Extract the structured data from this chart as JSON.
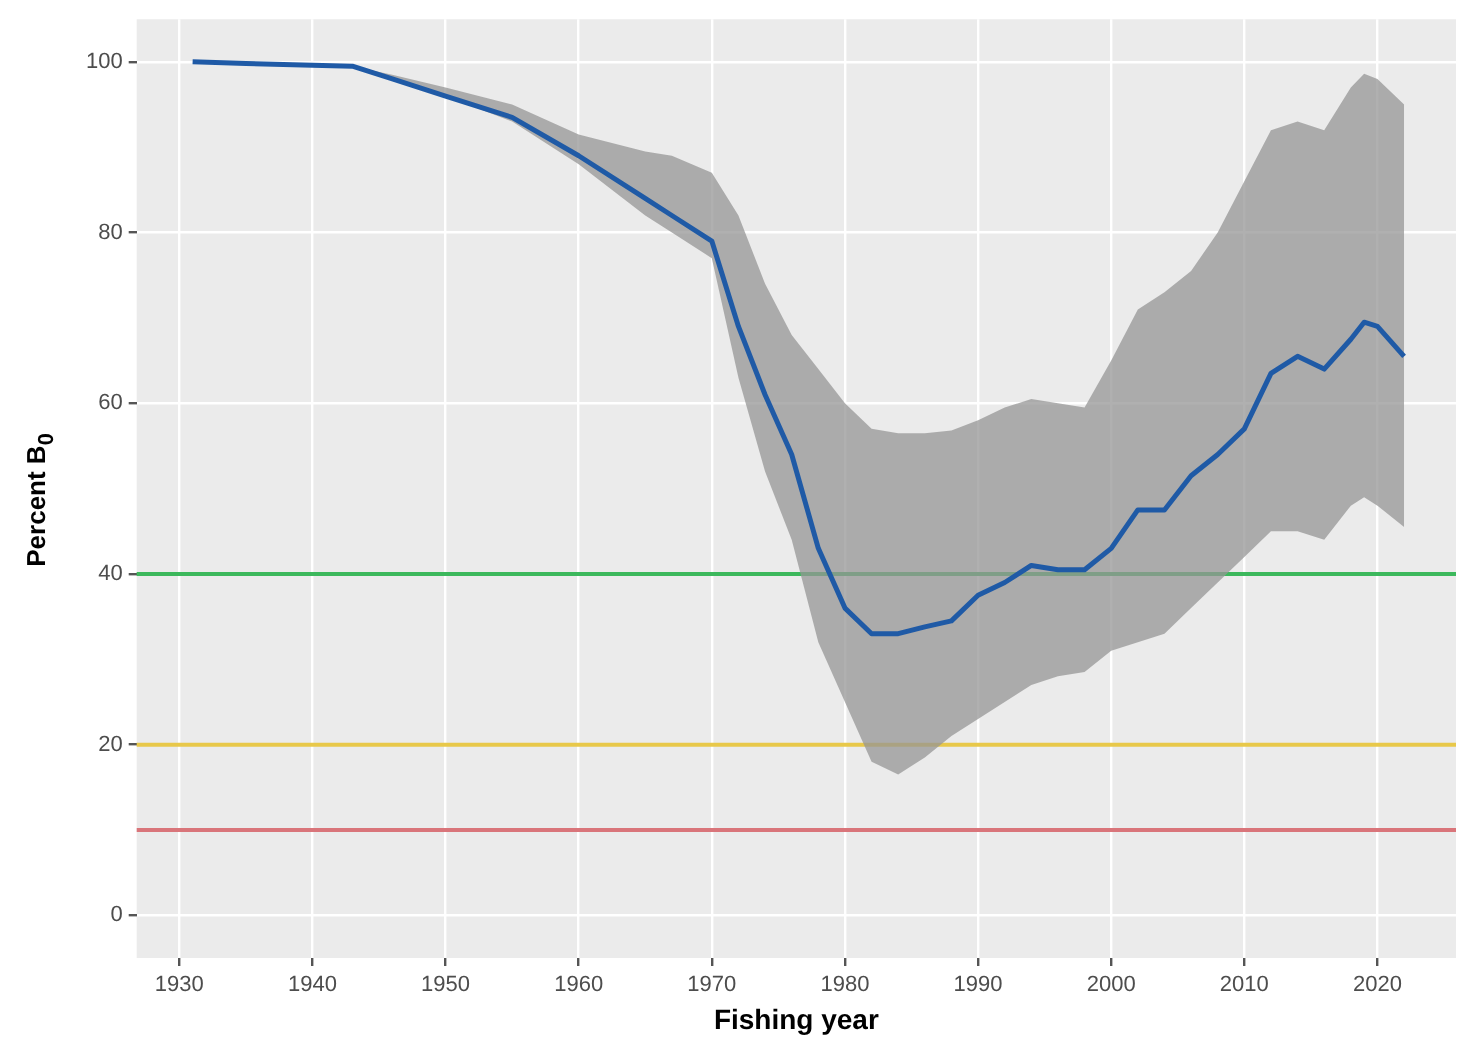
{
  "chart_data": {
    "type": "line",
    "xlabel": "Fishing year",
    "ylabel": "Percent B$_{0}$",
    "x": [
      1931,
      1935,
      1940,
      1943,
      1946,
      1950,
      1955,
      1960,
      1965,
      1967,
      1970,
      1972,
      1974,
      1976,
      1978,
      1980,
      1982,
      1984,
      1986,
      1988,
      1990,
      1992,
      1994,
      1996,
      1998,
      2000,
      2002,
      2004,
      2006,
      2008,
      2010,
      2012,
      2014,
      2016,
      2018,
      2019,
      2020,
      2022
    ],
    "series": [
      {
        "color": "#1f5aa6",
        "values": [
          100,
          99.8,
          99.6,
          99.5,
          98,
          96,
          93.5,
          89,
          84,
          82,
          79,
          69,
          61,
          54,
          43,
          36,
          33,
          33,
          33.8,
          34.5,
          37.5,
          39,
          41,
          40.5,
          40.5,
          43,
          47.5,
          47.5,
          51.5,
          54,
          57,
          63.5,
          65.5,
          64,
          67.5,
          69.5,
          69,
          65.5
        ],
        "lower": [
          100,
          99.8,
          99.6,
          99.5,
          98,
          96,
          93,
          88,
          82,
          80,
          77,
          63,
          52,
          44,
          32,
          25,
          18,
          16.5,
          18.5,
          21,
          23,
          25,
          27,
          28,
          28.5,
          31,
          32,
          33,
          36,
          39,
          42,
          45,
          45,
          44,
          48,
          49,
          48,
          45.5
        ],
        "upper": [
          100,
          99.8,
          99.6,
          99.5,
          98.5,
          97,
          95,
          91.5,
          89.5,
          89,
          87,
          82,
          74,
          68,
          64,
          60,
          57,
          56.5,
          56.5,
          56.8,
          58,
          59.5,
          60.5,
          60,
          59.5,
          65,
          71,
          73,
          75.5,
          80,
          86,
          92,
          93,
          92,
          97,
          98.6,
          98,
          95
        ]
      }
    ],
    "xlim": [
      1926.8,
      2025.9
    ],
    "xticks": [
      1930,
      1940,
      1950,
      1960,
      1970,
      1980,
      1990,
      2000,
      2010,
      2020
    ],
    "ylim": [
      -5,
      105
    ],
    "yticks": [
      0,
      20,
      40,
      60,
      80,
      100
    ],
    "ref_lines": [
      {
        "axis": "y",
        "value": 40,
        "color": "#3cb85c"
      },
      {
        "axis": "y",
        "value": 20,
        "color": "#e8c84a"
      },
      {
        "axis": "y",
        "value": 10,
        "color": "#d9757a"
      }
    ],
    "grid": true,
    "legend": false,
    "marker": "none",
    "line_style": "solid"
  }
}
